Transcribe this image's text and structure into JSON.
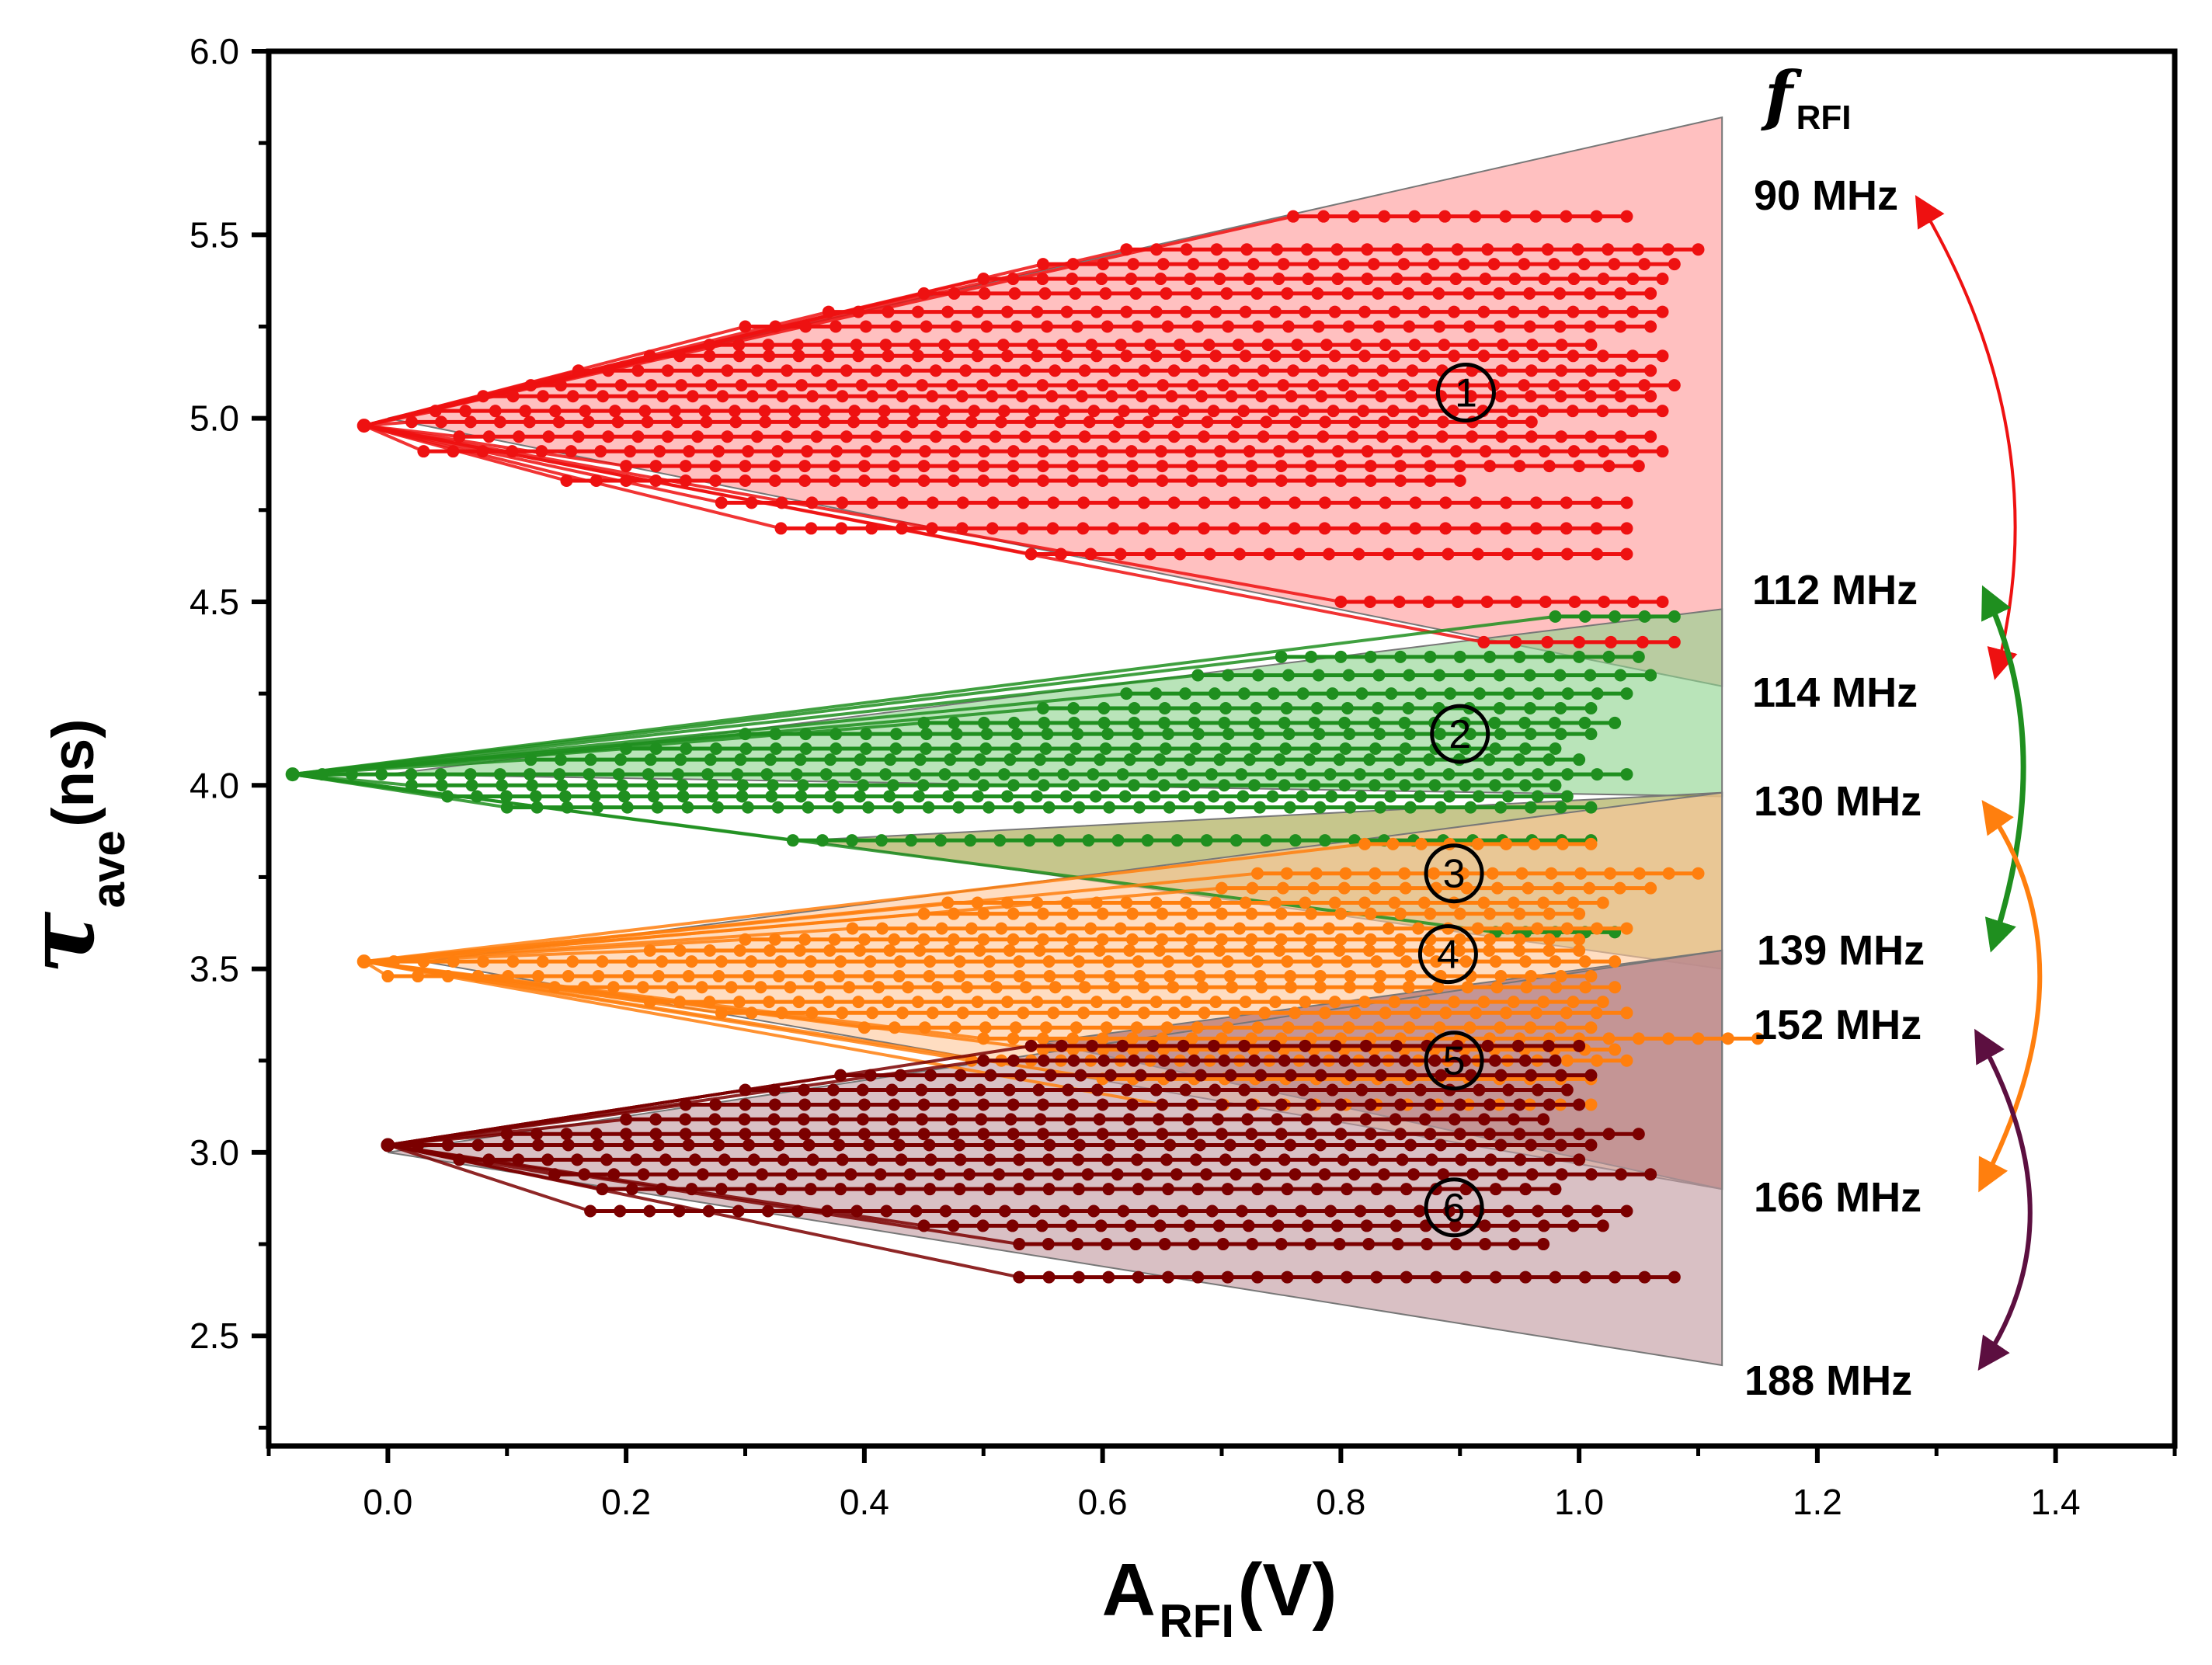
{
  "chart_data": {
    "type": "line",
    "xlabel": "A",
    "xlabel_sub": "RFI",
    "xlabel_unit": " (V)",
    "ylabel_symbol": "τ",
    "ylabel_sub": "ave",
    "ylabel_unit": " (ns)",
    "xlim": [
      -0.1,
      1.5
    ],
    "ylim": [
      2.2,
      6.0
    ],
    "x_ticks": [
      0.0,
      0.2,
      0.4,
      0.6,
      0.8,
      1.0,
      1.2,
      1.4
    ],
    "x_tick_labels": [
      "0.0",
      "0.2",
      "0.4",
      "0.6",
      "0.8",
      "1.0",
      "1.2",
      "1.4"
    ],
    "y_ticks": [
      2.5,
      3.0,
      3.5,
      4.0,
      4.5,
      5.0,
      5.5,
      6.0
    ],
    "y_tick_labels": [
      "2.5",
      "3.0",
      "3.5",
      "4.0",
      "4.5",
      "5.0",
      "5.5",
      "6.0"
    ],
    "grid": false,
    "legend_title": "f",
    "legend_title_sub": "RFI",
    "frequency_labels": [
      "90 MHz",
      "112 MHz",
      "114 MHz",
      "130 MHz",
      "139 MHz",
      "152 MHz",
      "166 MHz",
      "188 MHz"
    ],
    "colors": {
      "red": "#ee1111",
      "green": "#1f8f1f",
      "orange": "#ff7f0e",
      "darkred": "#7b0000",
      "purple": "#5c0f40",
      "band_red": "#ff9a9a",
      "band_green": "#8ed38e",
      "band_orange": "#ffc89b",
      "band_olive": "#a3a346",
      "band_brown": "#a86060",
      "band_mauve": "#c29aa0"
    },
    "bands": [
      {
        "marker": "1",
        "color": "band_red",
        "apex": [
          0.0,
          5.0
        ],
        "right_x": 1.12,
        "top": 5.82,
        "bottom": 4.27
      },
      {
        "marker": "2",
        "color": "band_green",
        "apex": [
          0.0,
          4.03
        ],
        "right_x": 1.12,
        "top": 4.48,
        "bottom": 3.97
      },
      {
        "marker": "3",
        "color": "band_olive",
        "apex": [
          0.35,
          3.85
        ],
        "right_x": 1.12,
        "top": 3.98,
        "bottom": 3.5
      },
      {
        "marker": "4",
        "color": "band_orange",
        "apex": [
          0.03,
          3.52
        ],
        "right_x": 1.12,
        "top": 3.98,
        "bottom": 2.9
      },
      {
        "marker": "5",
        "color": "band_brown",
        "apex": [
          0.55,
          3.3
        ],
        "right_x": 1.12,
        "top": 3.55,
        "bottom": 2.9
      },
      {
        "marker": "6",
        "color": "band_mauve",
        "apex": [
          0.0,
          3.0
        ],
        "right_x": 1.12,
        "top": 3.55,
        "bottom": 2.42
      }
    ],
    "markers": [
      {
        "label": "1",
        "x": 0.905,
        "y": 5.07
      },
      {
        "label": "2",
        "x": 0.9,
        "y": 4.14
      },
      {
        "label": "3",
        "x": 0.895,
        "y": 3.76
      },
      {
        "label": "4",
        "x": 0.89,
        "y": 3.54
      },
      {
        "label": "5",
        "x": 0.895,
        "y": 3.25
      },
      {
        "label": "6",
        "x": 0.895,
        "y": 2.85
      }
    ],
    "series": [
      {
        "color": "red",
        "fan_start": [
          -0.02,
          4.98
        ],
        "levels": [
          {
            "y": 5.55,
            "x0": 0.76,
            "x1": 1.04
          },
          {
            "y": 5.46,
            "x0": 0.62,
            "x1": 1.1
          },
          {
            "y": 5.42,
            "x0": 0.55,
            "x1": 1.08
          },
          {
            "y": 5.38,
            "x0": 0.5,
            "x1": 1.07
          },
          {
            "y": 5.34,
            "x0": 0.45,
            "x1": 1.06
          },
          {
            "y": 5.29,
            "x0": 0.37,
            "x1": 1.07
          },
          {
            "y": 5.25,
            "x0": 0.3,
            "x1": 1.06
          },
          {
            "y": 5.2,
            "x0": 0.27,
            "x1": 1.01
          },
          {
            "y": 5.17,
            "x0": 0.22,
            "x1": 1.07
          },
          {
            "y": 5.13,
            "x0": 0.16,
            "x1": 1.06
          },
          {
            "y": 5.09,
            "x0": 0.12,
            "x1": 1.08
          },
          {
            "y": 5.06,
            "x0": 0.08,
            "x1": 1.06
          },
          {
            "y": 5.02,
            "x0": 0.04,
            "x1": 1.07
          },
          {
            "y": 4.99,
            "x0": 0.02,
            "x1": 0.96
          },
          {
            "y": 4.95,
            "x0": 0.06,
            "x1": 1.06
          },
          {
            "y": 4.91,
            "x0": 0.03,
            "x1": 1.07
          },
          {
            "y": 4.87,
            "x0": 0.2,
            "x1": 1.05
          },
          {
            "y": 4.83,
            "x0": 0.15,
            "x1": 0.9
          },
          {
            "y": 4.77,
            "x0": 0.28,
            "x1": 1.04
          },
          {
            "y": 4.7,
            "x0": 0.33,
            "x1": 1.04
          },
          {
            "y": 4.63,
            "x0": 0.54,
            "x1": 1.04
          },
          {
            "y": 4.5,
            "x0": 0.8,
            "x1": 1.07
          },
          {
            "y": 4.39,
            "x0": 0.92,
            "x1": 1.08
          }
        ]
      },
      {
        "color": "green",
        "fan_start": [
          -0.08,
          4.03
        ],
        "levels": [
          {
            "y": 4.46,
            "x0": 0.98,
            "x1": 1.08
          },
          {
            "y": 4.35,
            "x0": 0.75,
            "x1": 1.05
          },
          {
            "y": 4.3,
            "x0": 0.68,
            "x1": 1.06
          },
          {
            "y": 4.25,
            "x0": 0.62,
            "x1": 1.04
          },
          {
            "y": 4.21,
            "x0": 0.55,
            "x1": 1.01
          },
          {
            "y": 4.17,
            "x0": 0.45,
            "x1": 1.03
          },
          {
            "y": 4.14,
            "x0": 0.3,
            "x1": 1.01
          },
          {
            "y": 4.1,
            "x0": 0.2,
            "x1": 0.98
          },
          {
            "y": 4.07,
            "x0": 0.12,
            "x1": 1.0
          },
          {
            "y": 4.03,
            "x0": -0.08,
            "x1": 1.04
          },
          {
            "y": 4.0,
            "x0": 0.02,
            "x1": 0.98
          },
          {
            "y": 3.97,
            "x0": 0.05,
            "x1": 0.99
          },
          {
            "y": 3.94,
            "x0": 0.1,
            "x1": 1.01
          },
          {
            "y": 3.85,
            "x0": 0.34,
            "x1": 1.01
          },
          {
            "y": 3.6,
            "x0": 0.93,
            "x1": 1.03
          }
        ]
      },
      {
        "color": "orange",
        "fan_start": [
          -0.02,
          3.52
        ],
        "levels": [
          {
            "y": 3.84,
            "x0": 0.82,
            "x1": 1.01
          },
          {
            "y": 3.76,
            "x0": 0.73,
            "x1": 1.1
          },
          {
            "y": 3.72,
            "x0": 0.7,
            "x1": 1.06
          },
          {
            "y": 3.68,
            "x0": 0.47,
            "x1": 1.02
          },
          {
            "y": 3.65,
            "x0": 0.45,
            "x1": 1.0
          },
          {
            "y": 3.61,
            "x0": 0.39,
            "x1": 1.04
          },
          {
            "y": 3.58,
            "x0": 0.3,
            "x1": 1.0
          },
          {
            "y": 3.55,
            "x0": 0.22,
            "x1": 1.0
          },
          {
            "y": 3.52,
            "x0": -0.02,
            "x1": 1.03
          },
          {
            "y": 3.48,
            "x0": 0.0,
            "x1": 1.01
          },
          {
            "y": 3.45,
            "x0": 0.14,
            "x1": 1.03
          },
          {
            "y": 3.41,
            "x0": 0.22,
            "x1": 1.02
          },
          {
            "y": 3.38,
            "x0": 0.28,
            "x1": 1.04
          },
          {
            "y": 3.34,
            "x0": 0.4,
            "x1": 1.01
          },
          {
            "y": 3.31,
            "x0": 0.5,
            "x1": 1.15
          },
          {
            "y": 3.28,
            "x0": 0.55,
            "x1": 1.03
          },
          {
            "y": 3.25,
            "x0": 0.49,
            "x1": 1.04
          },
          {
            "y": 3.2,
            "x0": 0.6,
            "x1": 1.01
          },
          {
            "y": 3.13,
            "x0": 0.65,
            "x1": 1.01
          }
        ]
      },
      {
        "color": "darkred",
        "fan_start": [
          0.0,
          3.02
        ],
        "levels": [
          {
            "y": 3.29,
            "x0": 0.54,
            "x1": 1.0
          },
          {
            "y": 3.25,
            "x0": 0.5,
            "x1": 0.98
          },
          {
            "y": 3.21,
            "x0": 0.38,
            "x1": 1.01
          },
          {
            "y": 3.17,
            "x0": 0.3,
            "x1": 0.99
          },
          {
            "y": 3.13,
            "x0": 0.25,
            "x1": 1.0
          },
          {
            "y": 3.09,
            "x0": 0.2,
            "x1": 0.97
          },
          {
            "y": 3.05,
            "x0": 0.1,
            "x1": 1.05
          },
          {
            "y": 3.02,
            "x0": 0.0,
            "x1": 1.01
          },
          {
            "y": 2.98,
            "x0": 0.06,
            "x1": 1.0
          },
          {
            "y": 2.94,
            "x0": 0.14,
            "x1": 1.06
          },
          {
            "y": 2.9,
            "x0": 0.18,
            "x1": 0.98
          },
          {
            "y": 2.84,
            "x0": 0.17,
            "x1": 1.04
          },
          {
            "y": 2.8,
            "x0": 0.45,
            "x1": 1.02
          },
          {
            "y": 2.75,
            "x0": 0.53,
            "x1": 0.97
          },
          {
            "y": 2.66,
            "x0": 0.53,
            "x1": 1.08
          }
        ]
      }
    ]
  }
}
